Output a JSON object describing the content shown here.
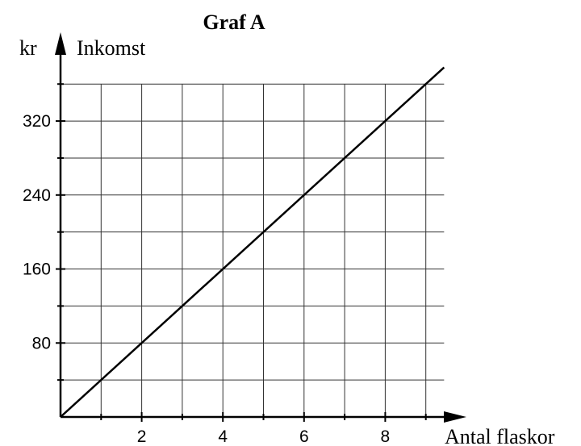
{
  "chart_data": {
    "type": "line",
    "title": "Graf A",
    "y_unit": "kr",
    "ylabel": "Inkomst",
    "xlabel": "Antal flaskor",
    "x": [
      0,
      9.45
    ],
    "values": [
      0,
      378
    ],
    "color": "#000000",
    "xlim": [
      0,
      10
    ],
    "ylim": [
      0,
      416
    ],
    "xticks": [
      2,
      4,
      6,
      8
    ],
    "x_minor_ticks": [
      1,
      3,
      5,
      7,
      9
    ],
    "yticks": [
      80,
      160,
      240,
      320
    ],
    "y_minor_ticks": [
      40,
      120,
      200,
      280,
      360
    ],
    "grid": true
  }
}
